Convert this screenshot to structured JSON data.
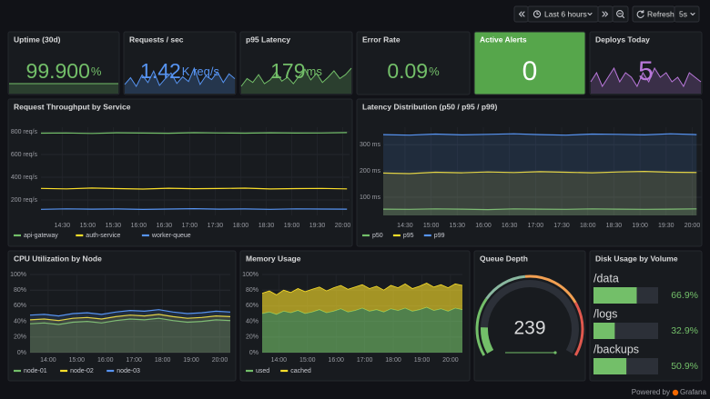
{
  "toolbar": {
    "time_range": "Last 6 hours",
    "refresh": "Refresh",
    "interval": "5s"
  },
  "stats": [
    {
      "title": "Uptime (30d)",
      "value": "99.900",
      "unit": "%",
      "color": "#73bf69",
      "sparkline": [
        99.9,
        99.9,
        99.9,
        99.9,
        99.9,
        99.9,
        99.9,
        99.9,
        99.9,
        99.9,
        99.9,
        99.9,
        99.9,
        99.9,
        99.9,
        99.9,
        99.9,
        99.9,
        99.9,
        99.9
      ]
    },
    {
      "title": "Requests / sec",
      "value": "1.42",
      "unit": "K req/s",
      "color": "#5794f2",
      "sparkline": [
        1.38,
        1.45,
        1.36,
        1.48,
        1.4,
        1.52,
        1.37,
        1.44,
        1.5,
        1.39,
        1.46,
        1.41,
        1.55,
        1.38,
        1.47,
        1.43,
        1.51,
        1.4,
        1.49,
        1.44
      ]
    },
    {
      "title": "p95 Latency",
      "value": "179",
      "unit": "ms",
      "color": "#73bf69",
      "sparkline": [
        172,
        178,
        175,
        181,
        174,
        177,
        183,
        176,
        179,
        174,
        180,
        185,
        177,
        182,
        175,
        179,
        184,
        178,
        181,
        186
      ]
    },
    {
      "title": "Error Rate",
      "value": "0.09",
      "unit": "%",
      "color": "#73bf69"
    },
    {
      "title": "Active Alerts",
      "value": "0",
      "color": "#ffffff",
      "background": "#56a64b"
    },
    {
      "title": "Deploys Today",
      "value": "5",
      "color": "#b877d9",
      "sparkline": [
        4,
        6,
        3,
        5,
        7,
        4,
        6,
        5,
        3,
        6,
        4,
        7,
        5,
        6,
        4,
        5,
        3,
        6,
        5,
        4
      ]
    }
  ],
  "chart_data": [
    {
      "type": "line",
      "title": "Request Throughput by Service",
      "x": [
        "14:05",
        "14:35",
        "15:05",
        "15:35",
        "16:05",
        "16:35",
        "17:05",
        "17:35",
        "18:05",
        "18:35",
        "19:05",
        "19:35",
        "20:05"
      ],
      "xlim": [
        "14:05",
        "20:08"
      ],
      "xticks": [
        "14:30",
        "15:00",
        "15:30",
        "16:00",
        "16:30",
        "17:00",
        "17:30",
        "18:00",
        "18:30",
        "19:00",
        "19:30",
        "20:00"
      ],
      "ylim": [
        64,
        840
      ],
      "yticks": [
        {
          "value": 200,
          "label": "200 req/s"
        },
        {
          "value": 400,
          "label": "400 req/s"
        },
        {
          "value": 600,
          "label": "600 req/s"
        },
        {
          "value": 800,
          "label": "800 req/s"
        }
      ],
      "grid": true,
      "series": [
        {
          "name": "api-gateway",
          "color": "#73bf69",
          "values": [
            788,
            790,
            786,
            791,
            789,
            787,
            792,
            790,
            788,
            791,
            789,
            790,
            793
          ]
        },
        {
          "name": "auth-service",
          "color": "#fade2a",
          "values": [
            302,
            298,
            305,
            300,
            296,
            303,
            299,
            301,
            304,
            297,
            300,
            302,
            298
          ]
        },
        {
          "name": "worker-queue",
          "color": "#5794f2",
          "values": [
            118,
            122,
            119,
            121,
            117,
            120,
            123,
            119,
            121,
            118,
            122,
            120,
            119
          ]
        }
      ]
    },
    {
      "type": "area",
      "title": "Latency Distribution (p50 / p95 / p99)",
      "x": [
        "14:05",
        "14:35",
        "15:05",
        "15:35",
        "16:05",
        "16:35",
        "17:05",
        "17:35",
        "18:05",
        "18:35",
        "19:05",
        "19:35",
        "20:05"
      ],
      "xlim": [
        "14:06",
        "20:11"
      ],
      "xticks": [
        "14:30",
        "15:00",
        "15:30",
        "16:00",
        "16:30",
        "17:00",
        "17:30",
        "18:00",
        "18:30",
        "19:00",
        "19:30",
        "20:00"
      ],
      "ylim": [
        31,
        366
      ],
      "yticks": [
        {
          "value": 100,
          "label": "100 ms"
        },
        {
          "value": 200,
          "label": "200 ms"
        },
        {
          "value": 300,
          "label": "300 ms"
        }
      ],
      "grid": true,
      "series": [
        {
          "name": "p50",
          "color": "#73bf69",
          "values": [
            55,
            54,
            56,
            55,
            53,
            56,
            55,
            54,
            56,
            55,
            54,
            55,
            56
          ]
        },
        {
          "name": "p95",
          "color": "#fade2a",
          "values": [
            192,
            190,
            195,
            193,
            196,
            194,
            197,
            195,
            193,
            196,
            198,
            195,
            194
          ]
        },
        {
          "name": "p99",
          "color": "#5794f2",
          "values": [
            338,
            336,
            340,
            337,
            339,
            341,
            338,
            336,
            340,
            339,
            337,
            341,
            338
          ]
        }
      ]
    },
    {
      "type": "area",
      "title": "CPU Utilization by Node",
      "x": [
        "13:22",
        "13:52",
        "14:22",
        "14:52",
        "15:22",
        "15:52",
        "16:22",
        "16:52",
        "17:22",
        "17:52",
        "18:22",
        "18:52",
        "19:22",
        "19:52",
        "20:22"
      ],
      "xlim": [
        "13:22",
        "20:22"
      ],
      "xticks": [
        "14:00",
        "15:00",
        "16:00",
        "17:00",
        "18:00",
        "19:00",
        "20:00"
      ],
      "ylim": [
        0,
        100
      ],
      "yticks": [
        {
          "value": 0,
          "label": "0%"
        },
        {
          "value": 20,
          "label": "20%"
        },
        {
          "value": 40,
          "label": "40%"
        },
        {
          "value": 60,
          "label": "60%"
        },
        {
          "value": 80,
          "label": "80%"
        },
        {
          "value": 100,
          "label": "100%"
        }
      ],
      "grid": true,
      "series": [
        {
          "name": "node-01",
          "color": "#73bf69",
          "values": [
            37,
            38,
            36,
            39,
            40,
            38,
            41,
            43,
            42,
            44,
            41,
            39,
            40,
            42,
            41
          ]
        },
        {
          "name": "node-02",
          "color": "#fade2a",
          "values": [
            42,
            43,
            41,
            44,
            45,
            43,
            46,
            48,
            47,
            49,
            46,
            44,
            45,
            47,
            46
          ]
        },
        {
          "name": "node-03",
          "color": "#5794f2",
          "values": [
            48,
            49,
            47,
            50,
            51,
            49,
            52,
            54,
            53,
            55,
            52,
            50,
            51,
            53,
            52
          ]
        }
      ]
    },
    {
      "type": "area",
      "title": "Memory Usage",
      "stacked": true,
      "x": [
        "13:25",
        "13:40",
        "13:55",
        "14:10",
        "14:25",
        "14:40",
        "14:55",
        "15:10",
        "15:25",
        "15:40",
        "15:55",
        "16:10",
        "16:25",
        "16:40",
        "16:55",
        "17:10",
        "17:25",
        "17:40",
        "17:55",
        "18:10",
        "18:25",
        "18:40",
        "18:55",
        "19:10",
        "19:25",
        "19:40",
        "19:55",
        "20:10",
        "20:25"
      ],
      "xlim": [
        "13:25",
        "20:25"
      ],
      "xticks": [
        "14:00",
        "15:00",
        "16:00",
        "17:00",
        "18:00",
        "19:00",
        "20:00"
      ],
      "ylim": [
        0,
        100
      ],
      "yticks": [
        {
          "value": 0,
          "label": "0%"
        },
        {
          "value": 20,
          "label": "20%"
        },
        {
          "value": 40,
          "label": "40%"
        },
        {
          "value": 60,
          "label": "60%"
        },
        {
          "value": 80,
          "label": "80%"
        },
        {
          "value": 100,
          "label": "100%"
        }
      ],
      "grid": true,
      "series": [
        {
          "name": "used",
          "color": "#73bf69",
          "values": [
            50,
            52,
            49,
            53,
            51,
            54,
            50,
            52,
            55,
            51,
            53,
            56,
            52,
            54,
            57,
            53,
            55,
            52,
            56,
            54,
            57,
            53,
            55,
            58,
            54,
            56,
            53,
            57,
            55
          ]
        },
        {
          "name": "cached",
          "color": "#fade2a",
          "values": [
            26,
            27,
            25,
            27,
            26,
            28,
            28,
            29,
            29,
            28,
            30,
            30,
            29,
            30,
            30,
            29,
            30,
            28,
            30,
            29,
            31,
            29,
            30,
            31,
            30,
            31,
            30,
            31,
            31
          ]
        }
      ]
    },
    {
      "type": "bar",
      "title": "Disk Usage by Volume",
      "horizontal": true,
      "color": "#73bf69",
      "categories": [
        "/data",
        "/logs",
        "/backups"
      ],
      "values": [
        66.9,
        32.9,
        50.9
      ],
      "value_labels": [
        "66.9%",
        "32.9%",
        "50.9%"
      ],
      "xlim": [
        0,
        100
      ]
    }
  ],
  "gauge": {
    "title": "Queue Depth",
    "value": "239"
  },
  "footer": {
    "prefix": "Powered by",
    "brand": "Grafana"
  }
}
